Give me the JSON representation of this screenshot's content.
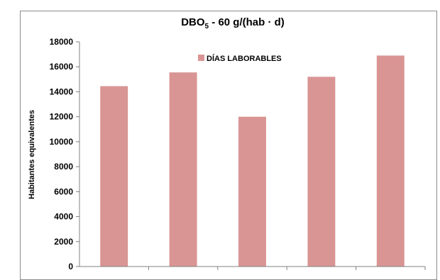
{
  "chart_data": {
    "type": "bar",
    "title_main": "DBO",
    "title_sub": "5",
    "title_rest": " -   60 g/(hab · d)",
    "ylabel": "Habitantes equivalentes",
    "xlabel": "",
    "ylim": [
      0,
      18000
    ],
    "yticks": [
      "0",
      "2000",
      "4000",
      "6000",
      "8000",
      "10000",
      "12000",
      "14000",
      "16000",
      "18000"
    ],
    "categories": [
      "",
      "",
      "",
      "",
      ""
    ],
    "series": [
      {
        "name": "DÍAS LABORABLES",
        "values": [
          14450,
          15550,
          12000,
          15200,
          16900
        ]
      }
    ],
    "colors": {
      "bar": "#d99594",
      "axis": "#808080",
      "frame": "#8c8c8c"
    },
    "grid": false,
    "legend_position": "top-center"
  }
}
